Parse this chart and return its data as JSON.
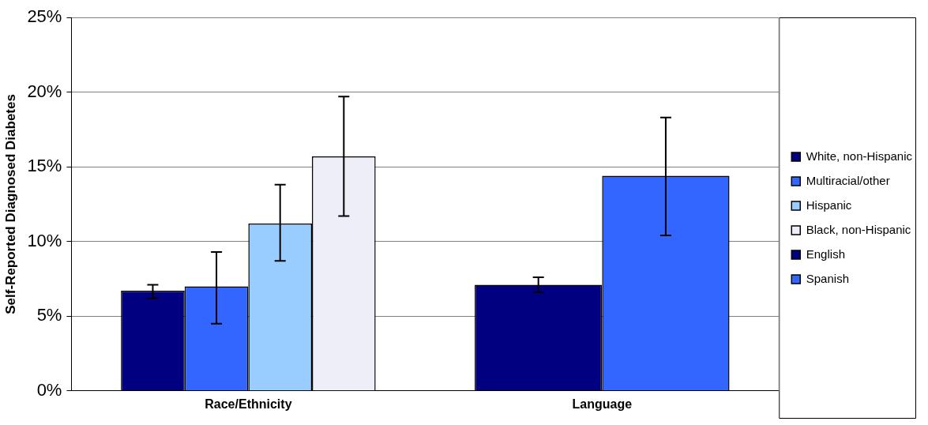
{
  "chart_data": {
    "type": "bar",
    "ylabel": "Self-Reported Diagnosed Diabetes",
    "categories": [
      "Race/Ethnicity",
      "Language"
    ],
    "ylim": [
      0,
      25
    ],
    "yticks": [
      {
        "value": 0,
        "label": "0%"
      },
      {
        "value": 5,
        "label": "5%"
      },
      {
        "value": 10,
        "label": "10%"
      },
      {
        "value": 15,
        "label": "15%"
      },
      {
        "value": 20,
        "label": "20%"
      },
      {
        "value": 25,
        "label": "25%"
      }
    ],
    "grid": "y",
    "legend": "right",
    "series": [
      {
        "name": "White, non-Hispanic",
        "color": "#000080",
        "values": [
          6.7,
          null
        ],
        "errors": [
          [
            6.2,
            7.1
          ],
          null
        ]
      },
      {
        "name": "Multiracial/other",
        "color": "#3366ff",
        "values": [
          7.0,
          null
        ],
        "errors": [
          [
            4.5,
            9.3
          ],
          null
        ]
      },
      {
        "name": "Hispanic",
        "color": "#99ccff",
        "values": [
          11.2,
          null
        ],
        "errors": [
          [
            8.7,
            13.8
          ],
          null
        ]
      },
      {
        "name": "Black, non-Hispanic",
        "color": "#eeeef8",
        "values": [
          15.7,
          null
        ],
        "errors": [
          [
            11.7,
            19.7
          ],
          null
        ]
      },
      {
        "name": "English",
        "color": "#000080",
        "values": [
          null,
          7.1
        ],
        "errors": [
          null,
          [
            6.6,
            7.6
          ]
        ]
      },
      {
        "name": "Spanish",
        "color": "#3366ff",
        "values": [
          null,
          14.4
        ],
        "errors": [
          null,
          [
            10.4,
            18.3
          ]
        ]
      }
    ]
  }
}
